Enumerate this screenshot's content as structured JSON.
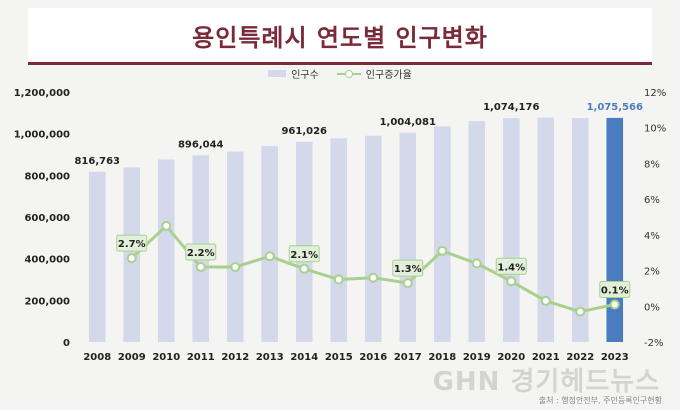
{
  "header": {
    "title": "용인특례시 연도별 인구변화"
  },
  "legend": {
    "population": "인구수",
    "growth": "인구증가율"
  },
  "source": "출처 : 행정안전부, 주민등록인구현황",
  "watermark": "GHN 경기헤드뉴스",
  "colors": {
    "bar": "#d3d8ea",
    "bar_highlight": "#4a7dbf",
    "line": "#a9d18e",
    "title": "#7b2a3a",
    "label_box": "#e2efda"
  },
  "chart_data": {
    "type": "bar+line",
    "categories": [
      "2008",
      "2009",
      "2010",
      "2011",
      "2012",
      "2013",
      "2014",
      "2015",
      "2016",
      "2017",
      "2018",
      "2019",
      "2020",
      "2021",
      "2022",
      "2023"
    ],
    "series": [
      {
        "name": "인구수",
        "axis": "left",
        "values": [
          816763,
          838000,
          876000,
          896044,
          914000,
          940000,
          961026,
          978000,
          990000,
          1004081,
          1035000,
          1060000,
          1074176,
          1077000,
          1075000,
          1075566
        ]
      },
      {
        "name": "인구증가율",
        "axis": "right",
        "values": [
          null,
          2.7,
          4.5,
          2.2,
          2.2,
          2.8,
          2.1,
          1.5,
          1.6,
          1.3,
          3.1,
          2.4,
          1.4,
          0.3,
          -0.3,
          0.1
        ]
      }
    ],
    "bar_labels": [
      {
        "category": "2008",
        "text": "816,763"
      },
      {
        "category": "2011",
        "text": "896,044"
      },
      {
        "category": "2014",
        "text": "961,026"
      },
      {
        "category": "2017",
        "text": "1,004,081"
      },
      {
        "category": "2020",
        "text": "1,074,176"
      },
      {
        "category": "2023",
        "text": "1,075,566"
      }
    ],
    "line_labels": [
      {
        "category": "2009",
        "text": "2.7%"
      },
      {
        "category": "2011",
        "text": "2.2%"
      },
      {
        "category": "2014",
        "text": "2.1%"
      },
      {
        "category": "2017",
        "text": "1.3%"
      },
      {
        "category": "2020",
        "text": "1.4%"
      },
      {
        "category": "2023",
        "text": "0.1%"
      }
    ],
    "highlight_category": "2023",
    "left_axis": {
      "ticks": [
        0,
        200000,
        400000,
        600000,
        800000,
        1000000,
        1200000
      ],
      "labels": [
        "0",
        "200,000",
        "400,000",
        "600,000",
        "800,000",
        "1,000,000",
        "1,200,000"
      ],
      "ylim": [
        0,
        1200000
      ]
    },
    "right_axis": {
      "ticks": [
        -2,
        0,
        2,
        4,
        6,
        8,
        10,
        12
      ],
      "labels": [
        "-2%",
        "0%",
        "2%",
        "4%",
        "6%",
        "8%",
        "10%",
        "12%"
      ],
      "ylim": [
        -2,
        12
      ]
    },
    "legend_position": "top-center",
    "grid": false
  }
}
